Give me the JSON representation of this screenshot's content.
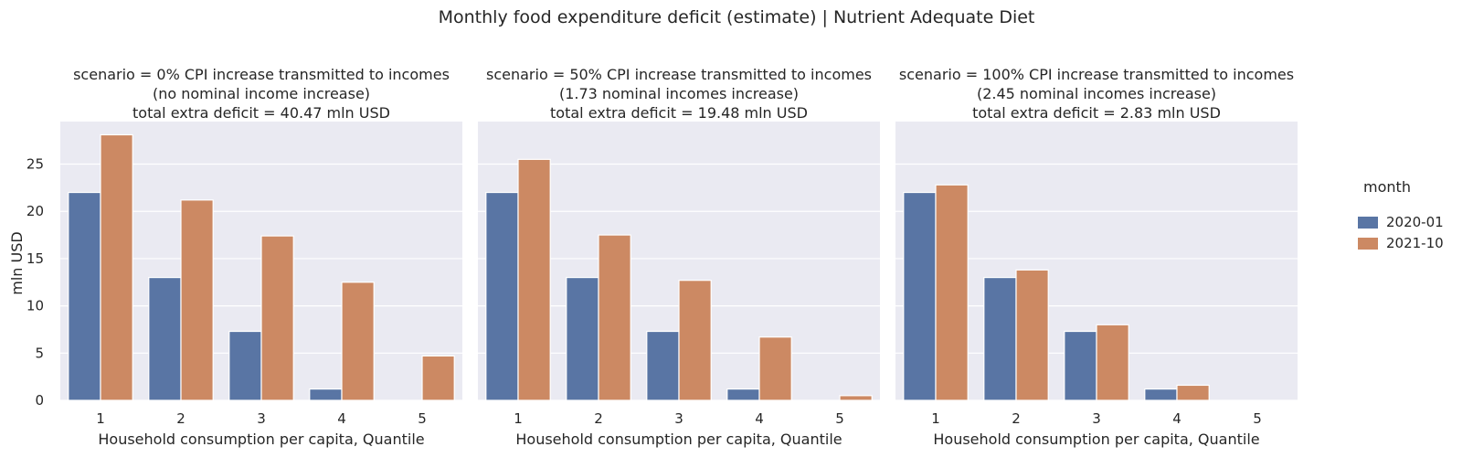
{
  "chart_data": {
    "type": "bar",
    "title": "Monthly food expenditure deficit (estimate) | Nutrient Adequate Diet",
    "ylabel": "mln USD",
    "ylim": [
      0,
      29.5
    ],
    "yticks": [
      "0",
      "5",
      "10",
      "15",
      "20",
      "25"
    ],
    "grid": true,
    "legend": {
      "title": "month",
      "placement": "right",
      "entries": [
        "2020-01",
        "2021-10"
      ],
      "colors": [
        "#5975a4",
        "#cc8963"
      ]
    },
    "panels": [
      {
        "title_lines": [
          "scenario = 0% CPI increase transmitted to incomes",
          "(no nominal income increase)",
          "total extra deficit = 40.47 mln USD"
        ],
        "xlabel": "Household consumption per capita, Quantile",
        "categories": [
          "1",
          "2",
          "3",
          "4",
          "5"
        ],
        "series": [
          {
            "name": "2020-01",
            "values": [
              22.0,
              13.0,
              7.3,
              1.2,
              0.0
            ]
          },
          {
            "name": "2021-10",
            "values": [
              28.1,
              21.2,
              17.4,
              12.5,
              4.7
            ]
          }
        ]
      },
      {
        "title_lines": [
          "scenario = 50% CPI increase transmitted to incomes",
          "(1.73 nominal incomes increase)",
          "total extra deficit = 19.48 mln USD"
        ],
        "xlabel": "Household consumption per capita, Quantile",
        "categories": [
          "1",
          "2",
          "3",
          "4",
          "5"
        ],
        "series": [
          {
            "name": "2020-01",
            "values": [
              22.0,
              13.0,
              7.3,
              1.2,
              0.0
            ]
          },
          {
            "name": "2021-10",
            "values": [
              25.5,
              17.5,
              12.7,
              6.7,
              0.5
            ]
          }
        ]
      },
      {
        "title_lines": [
          "scenario = 100% CPI increase transmitted to incomes",
          "(2.45 nominal incomes increase)",
          "total extra deficit = 2.83 mln USD"
        ],
        "xlabel": "Household consumption per capita, Quantile",
        "categories": [
          "1",
          "2",
          "3",
          "4",
          "5"
        ],
        "series": [
          {
            "name": "2020-01",
            "values": [
              22.0,
              13.0,
              7.3,
              1.2,
              0.0
            ]
          },
          {
            "name": "2021-10",
            "values": [
              22.8,
              13.8,
              8.0,
              1.6,
              0.0
            ]
          }
        ]
      }
    ]
  }
}
